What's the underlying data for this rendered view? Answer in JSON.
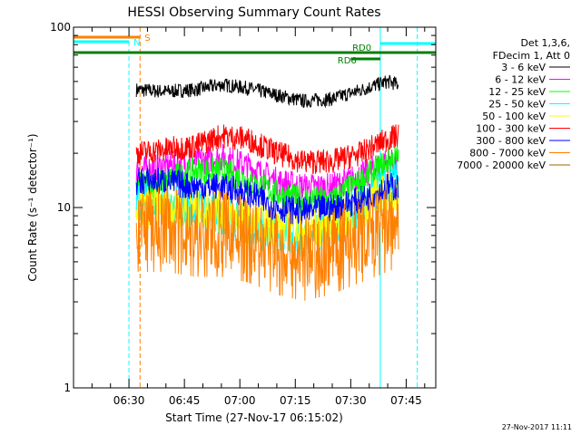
{
  "chart_data": {
    "type": "line",
    "title": "HESSI Observing Summary Count Rates",
    "xlabel": "Start Time (27-Nov-17 06:15:02)",
    "ylabel": "Count Rate (s⁻¹ detector⁻¹)",
    "yscale": "log",
    "ylim": [
      1,
      100
    ],
    "y_ticks": [
      1,
      10,
      100
    ],
    "y_tick_labels": [
      "1",
      "10",
      "100"
    ],
    "xlim": [
      "06:15",
      "07:53"
    ],
    "x_ticks": [
      "06:30",
      "06:45",
      "07:00",
      "07:15",
      "07:30",
      "07:45"
    ],
    "x_minor_tick_interval_min": 5,
    "grid": false,
    "legend_position": "right",
    "legend_header": [
      "Det 1,3,6,",
      "FDecim 1, Att 0"
    ],
    "data_start": "06:32",
    "data_end": "07:43",
    "series": [
      {
        "name": "3 - 6 keV",
        "color": "#000000",
        "x": [
          "06:32",
          "06:40",
          "06:48",
          "06:55",
          "07:02",
          "07:10",
          "07:17",
          "07:25",
          "07:33",
          "07:40",
          "07:43"
        ],
        "values": [
          45,
          44,
          45,
          48,
          46,
          42,
          39,
          40,
          45,
          50,
          48
        ]
      },
      {
        "name": "6 - 12 keV",
        "color": "#ff00ff",
        "x": [
          "06:32",
          "06:40",
          "06:48",
          "06:55",
          "07:02",
          "07:10",
          "07:17",
          "07:25",
          "07:33",
          "07:40",
          "07:43"
        ],
        "values": [
          16,
          17,
          18,
          19,
          17,
          14,
          13,
          13,
          15,
          18,
          17
        ]
      },
      {
        "name": "12 - 25 keV",
        "color": "#00ff00",
        "x": [
          "06:32",
          "06:40",
          "06:48",
          "06:55",
          "07:02",
          "07:10",
          "07:17",
          "07:25",
          "07:33",
          "07:40",
          "07:43"
        ],
        "values": [
          13,
          14,
          16,
          16,
          14,
          12,
          11,
          11,
          14,
          18,
          19
        ]
      },
      {
        "name": "25 - 50 keV",
        "color": "#00ffff",
        "x": [
          "06:32",
          "06:40",
          "06:48",
          "06:55",
          "07:02",
          "07:10",
          "07:17",
          "07:25",
          "07:33",
          "07:40",
          "07:43"
        ],
        "values": [
          11,
          10,
          10,
          9,
          8,
          7,
          7,
          8,
          10,
          13,
          14
        ]
      },
      {
        "name": "50 - 100 keV",
        "color": "#ffff00",
        "x": [
          "06:32",
          "06:40",
          "06:48",
          "06:55",
          "07:02",
          "07:10",
          "07:17",
          "07:25",
          "07:33",
          "07:40",
          "07:43"
        ],
        "values": [
          10,
          10,
          10,
          9.5,
          8.5,
          8,
          7.5,
          8,
          10,
          12,
          12
        ]
      },
      {
        "name": "100 - 300 keV",
        "color": "#ff0000",
        "x": [
          "06:32",
          "06:40",
          "06:48",
          "06:55",
          "07:02",
          "07:10",
          "07:17",
          "07:25",
          "07:33",
          "07:40",
          "07:43"
        ],
        "values": [
          20,
          21,
          22,
          25,
          24,
          20,
          18,
          18,
          20,
          24,
          25
        ]
      },
      {
        "name": "300 - 800 keV",
        "color": "#0000ff",
        "x": [
          "06:32",
          "06:40",
          "06:48",
          "06:55",
          "07:02",
          "07:10",
          "07:17",
          "07:25",
          "07:33",
          "07:40",
          "07:43"
        ],
        "values": [
          14,
          14,
          13,
          13,
          12,
          10,
          9.5,
          10,
          11,
          13,
          13
        ]
      },
      {
        "name": "800 - 7000 keV",
        "color": "#ff8000",
        "x": [
          "06:32",
          "06:40",
          "06:48",
          "06:55",
          "07:02",
          "07:10",
          "07:17",
          "07:25",
          "07:33",
          "07:40",
          "07:43"
        ],
        "values": [
          8,
          8,
          7.5,
          7.5,
          7,
          6,
          5.5,
          6,
          7,
          8,
          8.5
        ]
      },
      {
        "name": "7000 - 20000 keV",
        "color": "#a06000",
        "x": [],
        "values": []
      }
    ],
    "flags": [
      {
        "label": "S",
        "color": "#ff8000",
        "start": "06:15",
        "end": "06:33"
      },
      {
        "label": "N",
        "color": "#00ffff",
        "start": "06:15",
        "end": "06:30"
      },
      {
        "label": "RD0",
        "color": "#008000",
        "start": "06:15",
        "end": "07:53"
      },
      {
        "label": "RD6",
        "color": "#008000",
        "start": "07:30",
        "end": "07:38"
      }
    ],
    "vertical_markers": [
      {
        "time": "06:30",
        "color": "#00ffff",
        "style": "dashed"
      },
      {
        "time": "06:33",
        "color": "#ff8000",
        "style": "dashed"
      },
      {
        "time": "07:38",
        "color": "#00ffff",
        "style": "solid"
      },
      {
        "time": "07:48",
        "color": "#00ffff",
        "style": "dashed"
      }
    ]
  },
  "footer": {
    "timestamp": "27-Nov-2017 11:11"
  }
}
